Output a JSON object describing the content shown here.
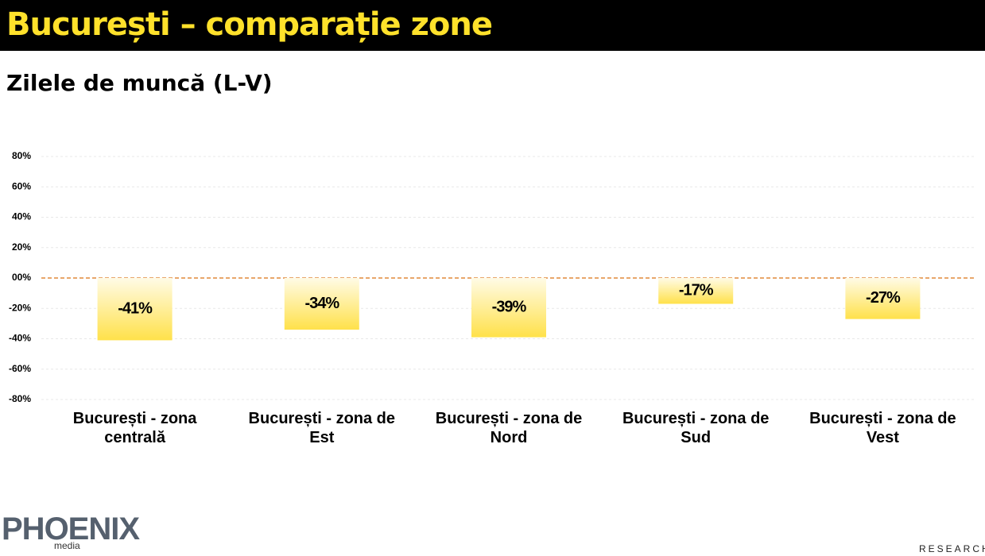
{
  "header": {
    "title": "București – comparație zone"
  },
  "logos": {
    "left": "PHOENIX",
    "left_sub": "media",
    "right": "RESEARCH"
  },
  "chart_data": {
    "type": "bar",
    "title": "Zilele de muncă (L-V)",
    "categories": [
      "București - zona centrală",
      "București - zona de Est",
      "București - zona de Nord",
      "București - zona de Sud",
      "București - zona de Vest"
    ],
    "values": [
      -41,
      -34,
      -39,
      -17,
      -27
    ],
    "value_labels": [
      "-41%",
      "-34%",
      "-39%",
      "-17%",
      "-27%"
    ],
    "color": "#ffe14a",
    "ylim": [
      -80,
      80
    ],
    "yticks": [
      {
        "value": -80,
        "label": "-80%"
      },
      {
        "value": -60,
        "label": "-60%"
      },
      {
        "value": -40,
        "label": "-40%"
      },
      {
        "value": -20,
        "label": "-20%"
      },
      {
        "value": 0,
        "label": "00%"
      },
      {
        "value": 20,
        "label": "20%"
      },
      {
        "value": 40,
        "label": "40%"
      },
      {
        "value": 60,
        "label": "60%"
      },
      {
        "value": 80,
        "label": "80%"
      }
    ],
    "grid": true
  }
}
